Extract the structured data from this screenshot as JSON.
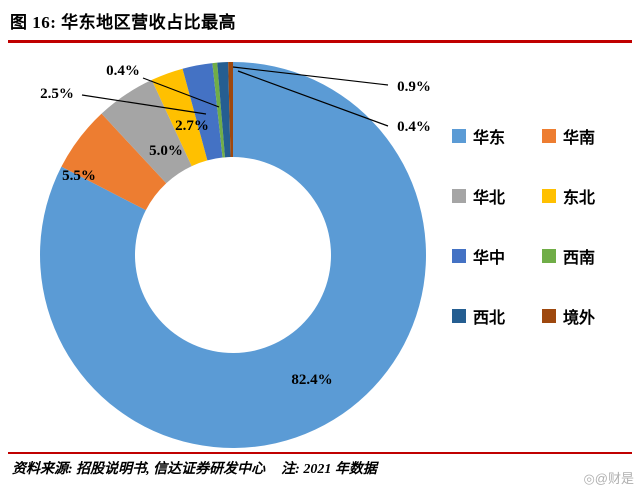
{
  "header": {
    "figure_title": "图 16:  华东地区营收占比最高"
  },
  "theme": {
    "rule_red": "#C00000"
  },
  "chart_data": {
    "type": "pie",
    "subtype": "donut",
    "unit": "%",
    "legend_position": "right",
    "start_angle_deg": 0,
    "direction": "clockwise",
    "series": [
      {
        "id": "huadong",
        "name": "华东",
        "value": 82.4,
        "label": "82.4%",
        "color": "#5B9BD5"
      },
      {
        "id": "huanan",
        "name": "华南",
        "value": 5.5,
        "label": "5.5%",
        "color": "#ED7D31"
      },
      {
        "id": "huabei",
        "name": "华北",
        "value": 5.0,
        "label": "5.0%",
        "color": "#A5A5A5"
      },
      {
        "id": "dongbei",
        "name": "东北",
        "value": 2.7,
        "label": "2.7%",
        "color": "#FFC000"
      },
      {
        "id": "huazhong",
        "name": "华中",
        "value": 2.5,
        "label": "2.5%",
        "color": "#4472C4"
      },
      {
        "id": "xinan",
        "name": "西南",
        "value": 0.4,
        "label": "0.4%",
        "color": "#70AD47"
      },
      {
        "id": "xibei",
        "name": "西北",
        "value": 0.9,
        "label": "0.9%",
        "color": "#255E91"
      },
      {
        "id": "jingwai",
        "name": "境外",
        "value": 0.4,
        "label": "0.4%",
        "color": "#9E480E"
      }
    ]
  },
  "footer": {
    "source": "资料来源: 招股说明书, 信达证券研发中心",
    "note": "注: 2021 年数据",
    "watermark": "◎@财是"
  }
}
